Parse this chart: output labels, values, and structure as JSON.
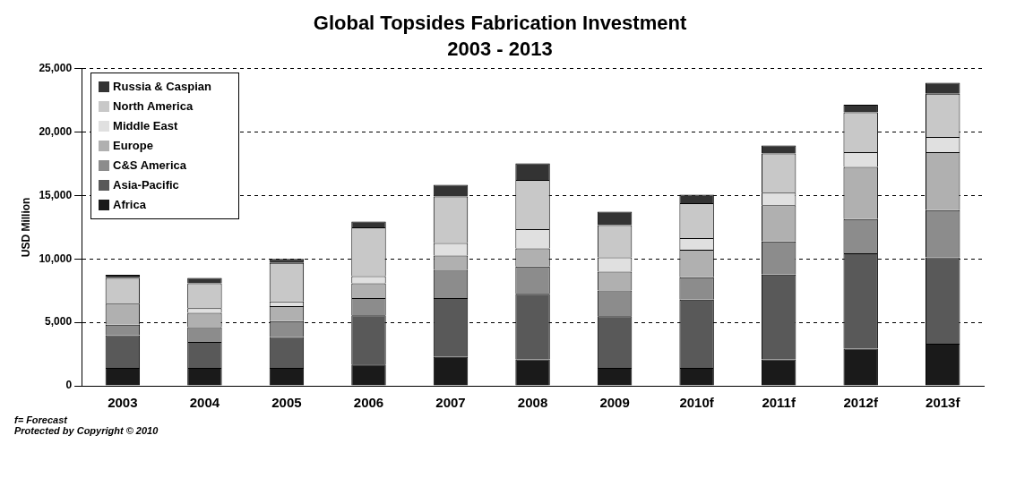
{
  "chart_data": {
    "type": "bar",
    "stacked": true,
    "title": "Global Topsides Fabrication Investment",
    "subtitle": "2003 - 2013",
    "ylabel": "USD Million",
    "categories": [
      "2003",
      "2004",
      "2005",
      "2006",
      "2007",
      "2008",
      "2009",
      "2010f",
      "2011f",
      "2012f",
      "2013f"
    ],
    "series": [
      {
        "name": "Africa",
        "color": "#1a1a1a",
        "values": [
          1410,
          1410,
          1410,
          1680,
          2280,
          2090,
          1410,
          1410,
          2090,
          2930,
          3320
        ]
      },
      {
        "name": "Asia-Pacific",
        "color": "#595959",
        "values": [
          2570,
          2040,
          2430,
          3870,
          4630,
          5160,
          4080,
          5390,
          6680,
          7510,
          6810
        ]
      },
      {
        "name": "C&S America",
        "color": "#8c8c8c",
        "values": [
          840,
          1180,
          1260,
          1360,
          2230,
          2150,
          2020,
          1750,
          2620,
          2700,
          3720
        ]
      },
      {
        "name": "Europe",
        "color": "#b0b0b0",
        "values": [
          1650,
          1130,
          1180,
          1180,
          1130,
          1440,
          1490,
          2170,
          2850,
          4110,
          4580
        ]
      },
      {
        "name": "Middle East",
        "color": "#e0e0e0",
        "values": [
          0,
          370,
          370,
          550,
          990,
          1520,
          1130,
          920,
          990,
          1180,
          1200
        ]
      },
      {
        "name": "North America",
        "color": "#c8c8c8",
        "values": [
          2040,
          1960,
          3040,
          3850,
          3660,
          3870,
          2540,
          2750,
          3090,
          3140,
          3400
        ]
      },
      {
        "name": "Russia & Caspian",
        "color": "#333333",
        "values": [
          240,
          420,
          310,
          470,
          920,
          1310,
          1050,
          680,
          630,
          600,
          860
        ]
      }
    ],
    "ylim": [
      0,
      25000
    ],
    "yticks": [
      {
        "value": 0,
        "label": "0"
      },
      {
        "value": 5000,
        "label": "5,000"
      },
      {
        "value": 10000,
        "label": "10,000"
      },
      {
        "value": 15000,
        "label": "15,000"
      },
      {
        "value": 20000,
        "label": "20,000"
      },
      {
        "value": 25000,
        "label": "25,000"
      }
    ],
    "grid": "y",
    "legend": "top left",
    "annotations": [
      "f= Forecast",
      "Protected by Copyright © 2010"
    ]
  }
}
